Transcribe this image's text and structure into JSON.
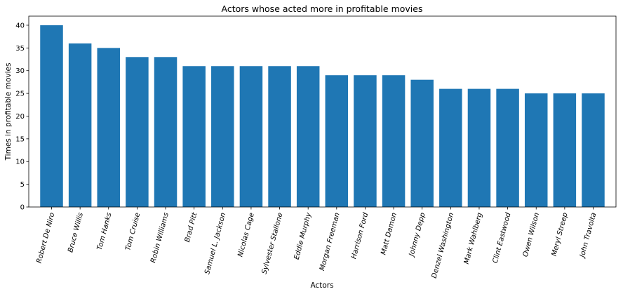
{
  "chart_data": {
    "type": "bar",
    "title": "Actors whose acted more in profitable movies",
    "xlabel": "Actors",
    "ylabel": "Times in profitable movies",
    "ylim": [
      0,
      42
    ],
    "yticks": [
      0,
      5,
      10,
      15,
      20,
      25,
      30,
      35,
      40
    ],
    "grid": false,
    "categories": [
      "Robert De Niro",
      "Bruce Willis",
      "Tom Hanks",
      "Tom Cruise",
      "Robin Williams",
      "Brad Pitt",
      "Samuel L. Jackson",
      "Nicolas Cage",
      "Sylvester Stallone",
      "Eddie Murphy",
      "Morgan Freeman",
      "Harrison Ford",
      "Matt Damon",
      "Johnny Depp",
      "Denzel Washington",
      "Mark Wahlberg",
      "Clint Eastwood",
      "Owen Wilson",
      "Meryl Streep",
      "John Travolta"
    ],
    "values": [
      40,
      36,
      35,
      33,
      33,
      31,
      31,
      31,
      31,
      31,
      29,
      29,
      29,
      28,
      26,
      26,
      26,
      25,
      25,
      25
    ],
    "bar_color": "#1f77b4"
  }
}
